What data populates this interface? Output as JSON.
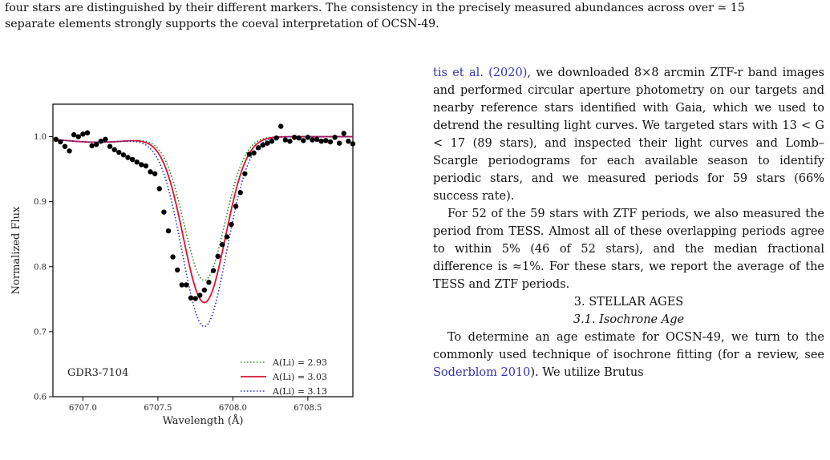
{
  "caption": {
    "line1": "four stars are distinguished by their different markers. The consistency in the precisely measured abundances across over ≃ 15",
    "line2": "separate elements strongly supports the coeval interpretation of OCSN-49."
  },
  "chart_data": {
    "type": "line",
    "xlabel": "Wavelength (Å)",
    "ylabel": "Normalized Flux",
    "xlim": [
      6706.8,
      6708.8
    ],
    "ylim": [
      0.6,
      1.05
    ],
    "xticks": [
      "6707.0",
      "6707.5",
      "6708.0",
      "6708.5"
    ],
    "xtick_values": [
      6707.0,
      6707.5,
      6708.0,
      6708.5
    ],
    "yticks": [
      "0.6",
      "0.7",
      "0.8",
      "0.9",
      "1.0"
    ],
    "ytick_values": [
      0.6,
      0.7,
      0.8,
      0.9,
      1.0
    ],
    "annotation": "GDR3-7104",
    "legend_position": "lower-right",
    "models": [
      {
        "label": "A(Li) = 2.93",
        "color": "#2a8a2a",
        "style": "dotted",
        "depth": 0.221,
        "slope": 0.0085,
        "center": 6707.81,
        "sigma": 0.135
      },
      {
        "label": "A(Li) = 3.03",
        "color": "#d8152f",
        "style": "solid",
        "depth": 0.255,
        "slope": 0.0085,
        "center": 6707.81,
        "sigma": 0.14
      },
      {
        "label": "A(Li) = 3.13",
        "color": "#2b2bcc",
        "style": "dotted",
        "depth": 0.292,
        "slope": 0.0085,
        "center": 6707.81,
        "sigma": 0.148
      }
    ],
    "observed": {
      "x": [
        6706.82,
        6706.85,
        6706.88,
        6706.91,
        6706.94,
        6706.97,
        6707.0,
        6707.03,
        6707.06,
        6707.09,
        6707.12,
        6707.15,
        6707.18,
        6707.21,
        6707.24,
        6707.27,
        6707.3,
        6707.33,
        6707.36,
        6707.39,
        6707.42,
        6707.45,
        6707.48,
        6707.51,
        6707.54,
        6707.57,
        6707.6,
        6707.63,
        6707.66,
        6707.69,
        6707.72,
        6707.75,
        6707.78,
        6707.81,
        6707.84,
        6707.87,
        6707.9,
        6707.93,
        6707.96,
        6707.99,
        6708.02,
        6708.05,
        6708.08,
        6708.11,
        6708.14,
        6708.17,
        6708.2,
        6708.23,
        6708.26,
        6708.29,
        6708.32,
        6708.35,
        6708.38,
        6708.41,
        6708.44,
        6708.47,
        6708.5,
        6708.53,
        6708.56,
        6708.59,
        6708.62,
        6708.65,
        6708.68,
        6708.71,
        6708.74,
        6708.77,
        6708.8
      ],
      "y": [
        0.996,
        0.992,
        0.985,
        0.978,
        1.003,
        1.0,
        1.004,
        1.006,
        0.986,
        0.988,
        0.993,
        0.996,
        0.985,
        0.98,
        0.976,
        0.972,
        0.968,
        0.965,
        0.961,
        0.957,
        0.955,
        0.946,
        0.943,
        0.92,
        0.884,
        0.855,
        0.815,
        0.795,
        0.772,
        0.772,
        0.752,
        0.751,
        0.756,
        0.764,
        0.776,
        0.794,
        0.816,
        0.834,
        0.846,
        0.865,
        0.893,
        0.914,
        0.943,
        0.973,
        0.975,
        0.983,
        0.987,
        0.99,
        0.993,
        0.998,
        1.016,
        0.995,
        0.993,
        0.999,
        0.998,
        0.994,
        0.999,
        0.995,
        0.996,
        0.993,
        0.994,
        0.992,
        0.999,
        0.99,
        1.005,
        0.993,
        0.989
      ]
    }
  },
  "body": {
    "p1": "tis et al. (2020), we downloaded 8×8 arcmin ZTF-r band images and performed circular aperture photometry on our targets and nearby reference stars identified with Gaia, which we used to detrend the resulting light curves. We targeted stars with 13 < G < 17 (89 stars), and inspected their light curves and Lomb–Scargle periodograms for each available season to identify periodic stars, and we measured periods for 59 stars (66% success rate).",
    "p1_cite": "tis et al. (2020)",
    "p1_rest": ", we downloaded 8×8 arcmin ZTF-r band images and performed circular aperture photometry on our targets and nearby reference stars identified with Gaia, which we used to detrend the resulting light curves. We targeted stars with 13 < G < 17 (89 stars), and inspected their light curves and Lomb–Scargle periodograms for each available season to identify periodic stars, and we measured periods for 59 stars (66% success rate).",
    "p2": "For 52 of the 59 stars with ZTF periods, we also measured the period from TESS. Almost all of these overlapping periods agree to within 5% (46 of 52 stars), and the median fractional difference is ≈1%. For these stars, we report the average of the TESS and ZTF periods.",
    "section": "3. STELLAR AGES",
    "subsection": "3.1. Isochrone Age",
    "p3_a": "To determine an age estimate for OCSN-49, we turn to the commonly used technique of isochrone fitting (for a review, see ",
    "p3_cite": "Soderblom 2010",
    "p3_b": "). We utilize Brutus"
  }
}
